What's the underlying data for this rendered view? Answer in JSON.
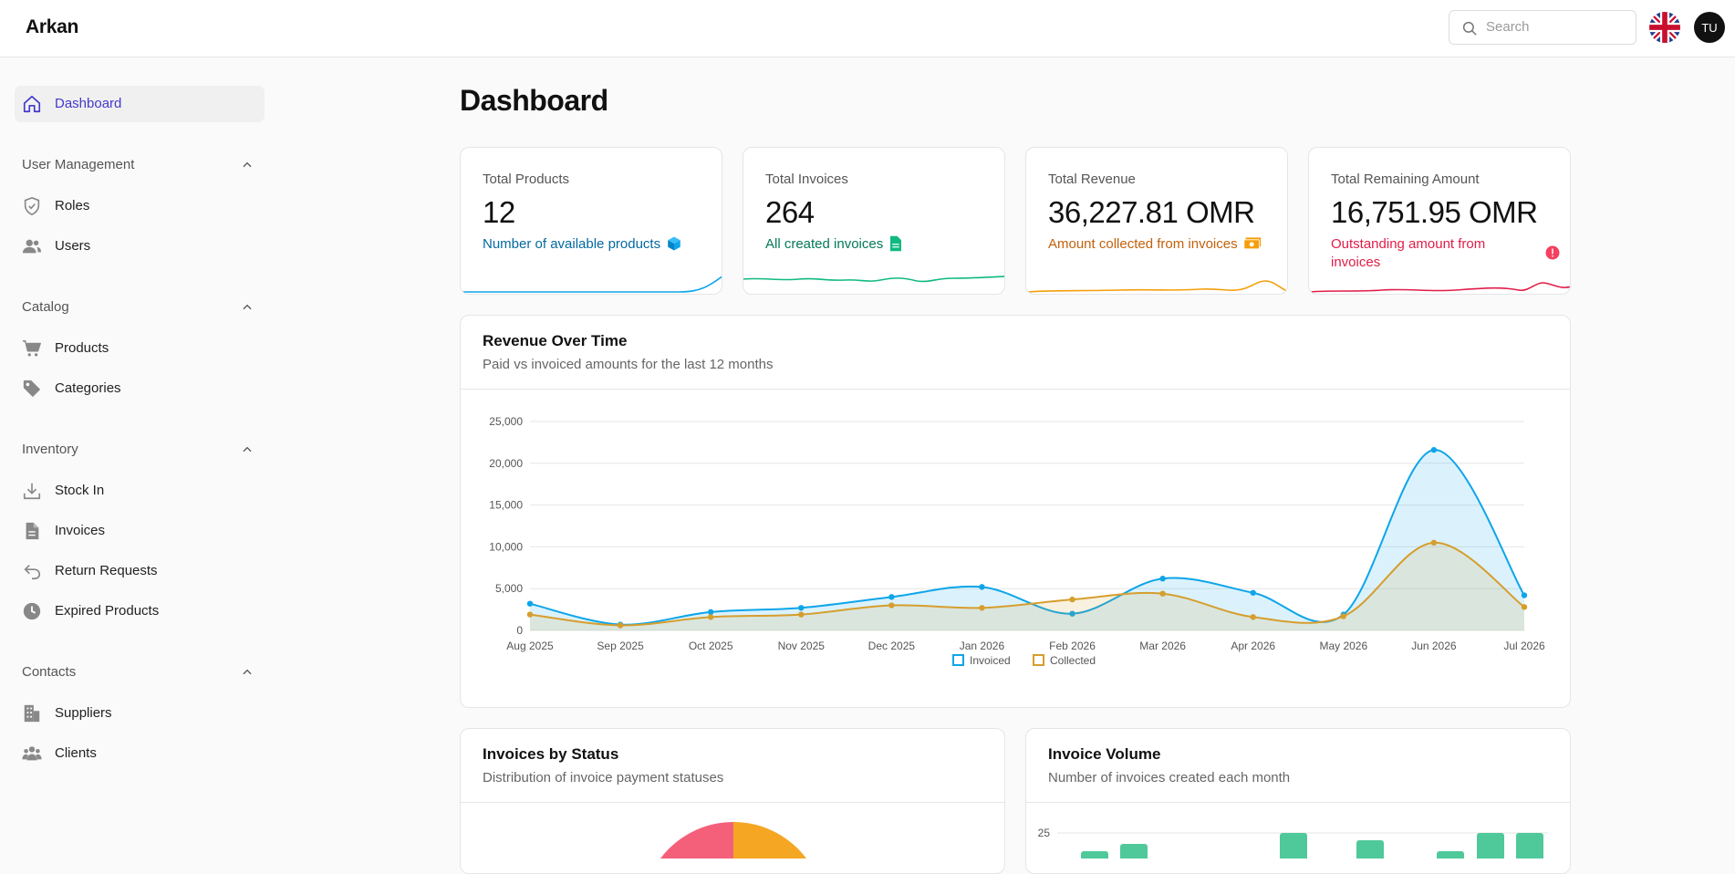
{
  "app": {
    "brand": "Arkan"
  },
  "header": {
    "search_placeholder": "Search",
    "avatar_initials": "TU"
  },
  "sidebar": {
    "dashboard": "Dashboard",
    "groups": [
      {
        "label": "User Management",
        "items": [
          "Roles",
          "Users"
        ]
      },
      {
        "label": "Catalog",
        "items": [
          "Products",
          "Categories"
        ]
      },
      {
        "label": "Inventory",
        "items": [
          "Stock In",
          "Invoices",
          "Return Requests",
          "Expired Products"
        ]
      },
      {
        "label": "Contacts",
        "items": [
          "Suppliers",
          "Clients"
        ]
      }
    ]
  },
  "page": {
    "title": "Dashboard"
  },
  "stats": [
    {
      "label": "Total Products",
      "value": "12",
      "sub": "Number of available products",
      "color": "#0284c7"
    },
    {
      "label": "Total Invoices",
      "value": "264",
      "sub": "All created invoices",
      "color": "#059669"
    },
    {
      "label": "Total Revenue",
      "value": "36,227.81 OMR",
      "sub": "Amount collected from invoices",
      "color": "#c2610c"
    },
    {
      "label": "Total Remaining Amount",
      "value": "16,751.95 OMR",
      "sub": "Outstanding amount from invoices",
      "color": "#e11d48"
    }
  ],
  "revenue_panel": {
    "title": "Revenue Over Time",
    "subtitle": "Paid vs invoiced amounts for the last 12 months"
  },
  "status_panel": {
    "title": "Invoices by Status",
    "subtitle": "Distribution of invoice payment statuses"
  },
  "volume_panel": {
    "title": "Invoice Volume",
    "subtitle": "Number of invoices created each month",
    "y_tick": "25"
  },
  "chart_data": [
    {
      "type": "area",
      "title": "Revenue Over Time",
      "categories": [
        "Aug 2025",
        "Sep 2025",
        "Oct 2025",
        "Nov 2025",
        "Dec 2025",
        "Jan 2026",
        "Feb 2026",
        "Mar 2026",
        "Apr 2026",
        "May 2026",
        "Jun 2026",
        "Jul 2026"
      ],
      "y_ticks": [
        "0",
        "5,000",
        "10,000",
        "15,000",
        "20,000",
        "25,000"
      ],
      "ylim": [
        0,
        25000
      ],
      "series": [
        {
          "name": "Invoiced",
          "color": "#0ea5e9",
          "values": [
            3200,
            700,
            2200,
            2700,
            4000,
            5200,
            2000,
            6200,
            4500,
            1900,
            21600,
            4200
          ]
        },
        {
          "name": "Collected",
          "color": "#d69e2e",
          "values": [
            1900,
            600,
            1600,
            1900,
            3000,
            2700,
            3700,
            4400,
            1600,
            1700,
            10500,
            2800
          ]
        }
      ],
      "legend": "bottom"
    },
    {
      "type": "pie",
      "title": "Invoices by Status",
      "colors": [
        "#f4607a",
        "#f5a623"
      ]
    },
    {
      "type": "bar",
      "title": "Invoice Volume",
      "color": "#4fc99a",
      "y_ticks": [
        "25"
      ]
    }
  ]
}
